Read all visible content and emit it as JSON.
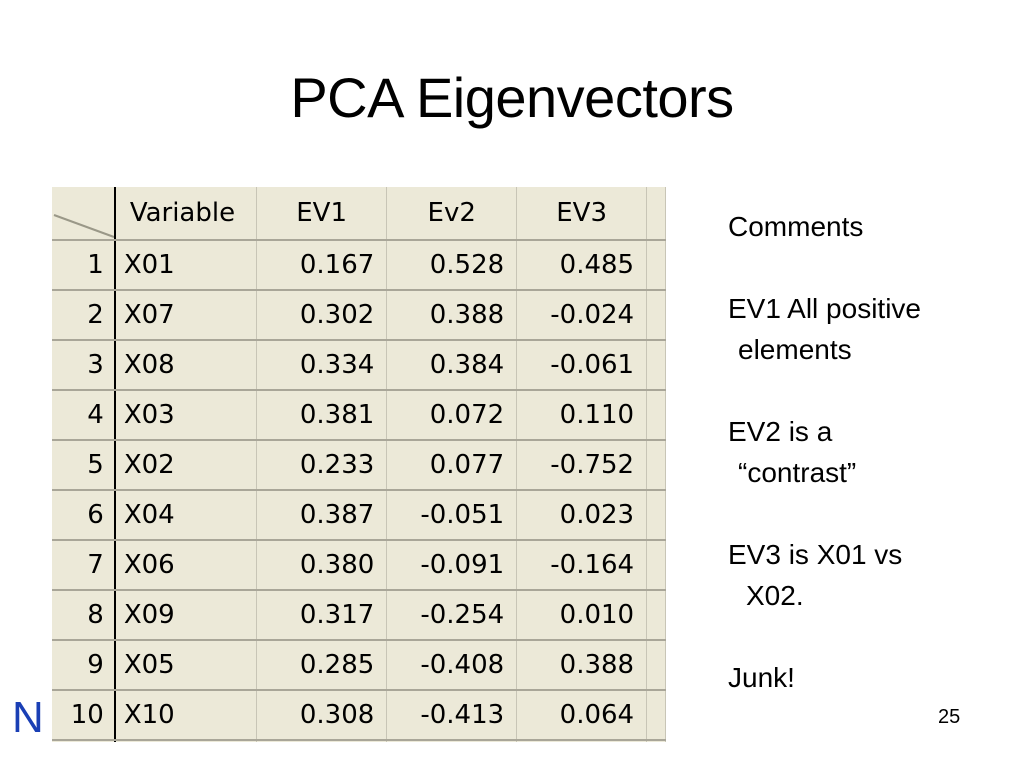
{
  "slide": {
    "title": "PCA Eigenvectors",
    "page_number": "25",
    "footer_logo_text": "N"
  },
  "table": {
    "columns": [
      "Variable",
      "EV1",
      "Ev2",
      "EV3"
    ],
    "rows": [
      {
        "index": "1",
        "variable": "X01",
        "ev1": "0.167",
        "ev2": "0.528",
        "ev3": "0.485"
      },
      {
        "index": "2",
        "variable": "X07",
        "ev1": "0.302",
        "ev2": "0.388",
        "ev3": "-0.024"
      },
      {
        "index": "3",
        "variable": "X08",
        "ev1": "0.334",
        "ev2": "0.384",
        "ev3": "-0.061"
      },
      {
        "index": "4",
        "variable": "X03",
        "ev1": "0.381",
        "ev2": "0.072",
        "ev3": "0.110"
      },
      {
        "index": "5",
        "variable": "X02",
        "ev1": "0.233",
        "ev2": "0.077",
        "ev3": "-0.752"
      },
      {
        "index": "6",
        "variable": "X04",
        "ev1": "0.387",
        "ev2": "-0.051",
        "ev3": "0.023"
      },
      {
        "index": "7",
        "variable": "X06",
        "ev1": "0.380",
        "ev2": "-0.091",
        "ev3": "-0.164"
      },
      {
        "index": "8",
        "variable": "X09",
        "ev1": "0.317",
        "ev2": "-0.254",
        "ev3": "0.010"
      },
      {
        "index": "9",
        "variable": "X05",
        "ev1": "0.285",
        "ev2": "-0.408",
        "ev3": "0.388"
      },
      {
        "index": "10",
        "variable": "X10",
        "ev1": "0.308",
        "ev2": "-0.413",
        "ev3": "0.064"
      }
    ]
  },
  "comments": {
    "heading": "Comments",
    "ev1_line1": "EV1 All positive",
    "ev1_line2": "elements",
    "ev2_line1": "EV2 is a",
    "ev2_line2": "“contrast”",
    "ev3_line1": "EV3 is X01 vs",
    "ev3_line2": "X02.",
    "closing": "Junk!"
  },
  "colors": {
    "grid_background": "#ece9d8",
    "logo": "#1a3fb5"
  }
}
